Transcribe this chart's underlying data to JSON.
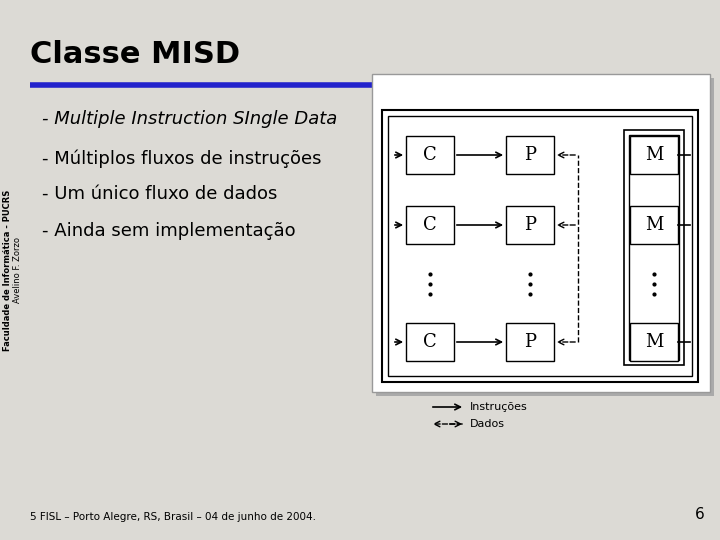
{
  "title": "Classe MISD",
  "bg_color": "#dcdad5",
  "title_color": "#000000",
  "title_fontsize": 22,
  "blue_line_color": "#2222cc",
  "bullet_lines": [
    "- Multiple Instruction SIngle Data",
    "- Múltiplos fluxos de instruções",
    "- Um único fluxo de dados",
    "- Ainda sem implementação"
  ],
  "bullet_italic": [
    true,
    false,
    false,
    false
  ],
  "bullet_fontsize": 13,
  "side_text": "Faculdade de Informática - PUCRS",
  "side_text2": "Avelino F. Zorzo",
  "footer": "5 FISL – Porto Alegre, RS, Brasil – 04 de junho de 2004.",
  "page_num": "6",
  "legend_instrucoes": "Instruções",
  "legend_dados": "Dados"
}
